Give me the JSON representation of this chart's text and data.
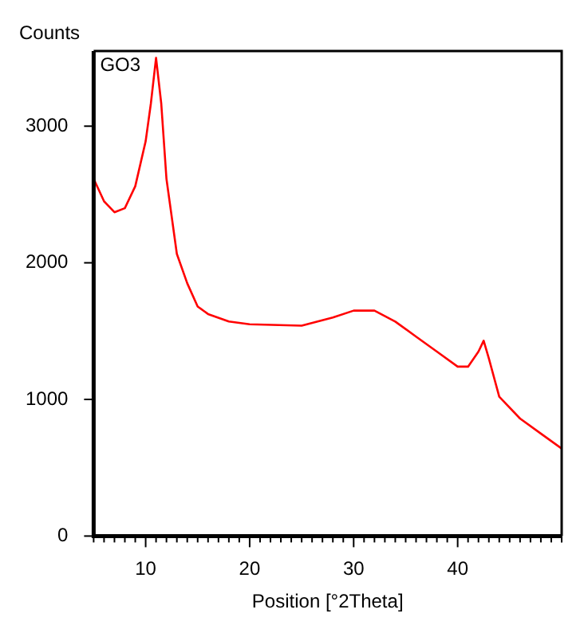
{
  "chart_data": {
    "type": "line",
    "xlabel": "Position [°2Theta]",
    "ylabel": "Counts",
    "annotations": [
      "GO3"
    ],
    "x": [
      5,
      6,
      7,
      8,
      9,
      10,
      10.5,
      11,
      11.5,
      12,
      13,
      14,
      15,
      16,
      18,
      20,
      25,
      28,
      30,
      32,
      34,
      36,
      38,
      40,
      41,
      42,
      42.5,
      43,
      44,
      46,
      48,
      50
    ],
    "series": [
      {
        "color": "#ff0000",
        "values": [
          2615,
          2450,
          2370,
          2400,
          2560,
          2890,
          3165,
          3500,
          3165,
          2615,
          2065,
          1850,
          1680,
          1625,
          1570,
          1550,
          1540,
          1600,
          1650,
          1650,
          1570,
          1460,
          1350,
          1240,
          1240,
          1350,
          1430,
          1300,
          1020,
          860,
          750,
          640
        ]
      }
    ],
    "xlim": [
      5,
      50
    ],
    "ylim": [
      0,
      3550
    ],
    "xticks": [
      {
        "value": 5,
        "label": null
      },
      {
        "value": 6,
        "label": null
      },
      {
        "value": 7,
        "label": null
      },
      {
        "value": 8,
        "label": null
      },
      {
        "value": 9,
        "label": null
      },
      10,
      {
        "value": 11,
        "label": null
      },
      {
        "value": 12,
        "label": null
      },
      {
        "value": 13,
        "label": null
      },
      {
        "value": 14,
        "label": null
      },
      {
        "value": 15,
        "label": null
      },
      {
        "value": 16,
        "label": null
      },
      {
        "value": 17,
        "label": null
      },
      {
        "value": 18,
        "label": null
      },
      {
        "value": 19,
        "label": null
      },
      20,
      {
        "value": 21,
        "label": null
      },
      {
        "value": 22,
        "label": null
      },
      {
        "value": 23,
        "label": null
      },
      {
        "value": 24,
        "label": null
      },
      {
        "value": 25,
        "label": null
      },
      {
        "value": 26,
        "label": null
      },
      {
        "value": 27,
        "label": null
      },
      {
        "value": 28,
        "label": null
      },
      {
        "value": 29,
        "label": null
      },
      30,
      {
        "value": 31,
        "label": null
      },
      {
        "value": 32,
        "label": null
      },
      {
        "value": 33,
        "label": null
      },
      {
        "value": 34,
        "label": null
      },
      {
        "value": 35,
        "label": null
      },
      {
        "value": 36,
        "label": null
      },
      {
        "value": 37,
        "label": null
      },
      {
        "value": 38,
        "label": null
      },
      {
        "value": 39,
        "label": null
      },
      40,
      {
        "value": 41,
        "label": null
      },
      {
        "value": 42,
        "label": null
      },
      {
        "value": 43,
        "label": null
      },
      {
        "value": 44,
        "label": null
      },
      {
        "value": 45,
        "label": null
      },
      {
        "value": 46,
        "label": null
      },
      {
        "value": 47,
        "label": null
      },
      {
        "value": 48,
        "label": null
      },
      {
        "value": 49,
        "label": null
      },
      {
        "value": 50,
        "label": null
      }
    ],
    "yticks": [
      0,
      1000,
      2000,
      3000
    ],
    "grid": false,
    "legend": false,
    "marker": "none",
    "line_style": "solid"
  }
}
